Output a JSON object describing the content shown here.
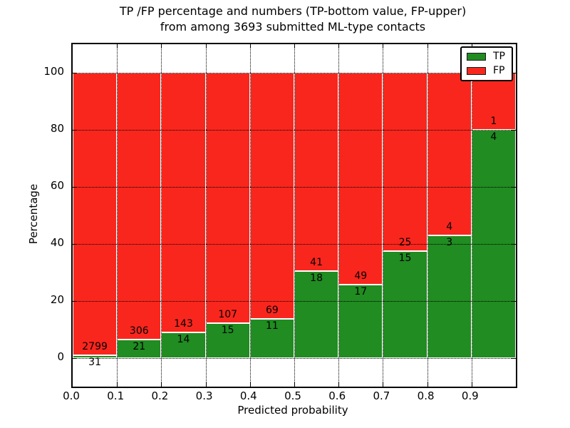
{
  "figure": {
    "title_line1": "TP /FP percentage and numbers (TP-bottom value, FP-upper)",
    "title_line2": "from among 3693 submitted ML-type contacts",
    "xlabel": "Predicted probability",
    "ylabel": "Percentage"
  },
  "legend": {
    "position": "upper-right",
    "items": [
      {
        "label": "TP",
        "color": "#208c21"
      },
      {
        "label": "FP",
        "color": "#f9261d"
      }
    ]
  },
  "chart_data": {
    "type": "bar",
    "stacked": true,
    "normalized_to_percent": true,
    "total_contacts": 3693,
    "title": "TP /FP percentage and numbers (TP-bottom value, FP-upper) from among 3693 submitted ML-type contacts",
    "xlabel": "Predicted probability",
    "ylabel": "Percentage",
    "xlim": [
      0.0,
      1.0
    ],
    "ylim": [
      -10,
      110
    ],
    "grid": "dotted-black-on-top",
    "bin_edges": [
      0.0,
      0.1,
      0.2,
      0.3,
      0.4,
      0.5,
      0.6,
      0.7,
      0.8,
      0.9,
      1.0
    ],
    "x_tick_labels": [
      "0.0",
      "0.1",
      "0.2",
      "0.3",
      "0.4",
      "0.5",
      "0.6",
      "0.7",
      "0.8",
      "0.9"
    ],
    "y_ticks": [
      0,
      20,
      40,
      60,
      80,
      100
    ],
    "series": [
      {
        "name": "TP",
        "color": "#208c21",
        "counts": [
          31,
          21,
          14,
          15,
          11,
          18,
          17,
          15,
          3,
          4
        ],
        "pct": [
          1.1,
          6.4,
          8.9,
          12.3,
          13.8,
          30.5,
          25.8,
          37.5,
          42.9,
          80.0
        ]
      },
      {
        "name": "FP",
        "color": "#f9261d",
        "counts": [
          2799,
          306,
          143,
          107,
          69,
          41,
          49,
          25,
          4,
          1
        ],
        "pct": [
          98.9,
          93.6,
          91.1,
          87.7,
          86.2,
          69.5,
          74.2,
          62.5,
          57.1,
          20.0
        ]
      }
    ]
  }
}
